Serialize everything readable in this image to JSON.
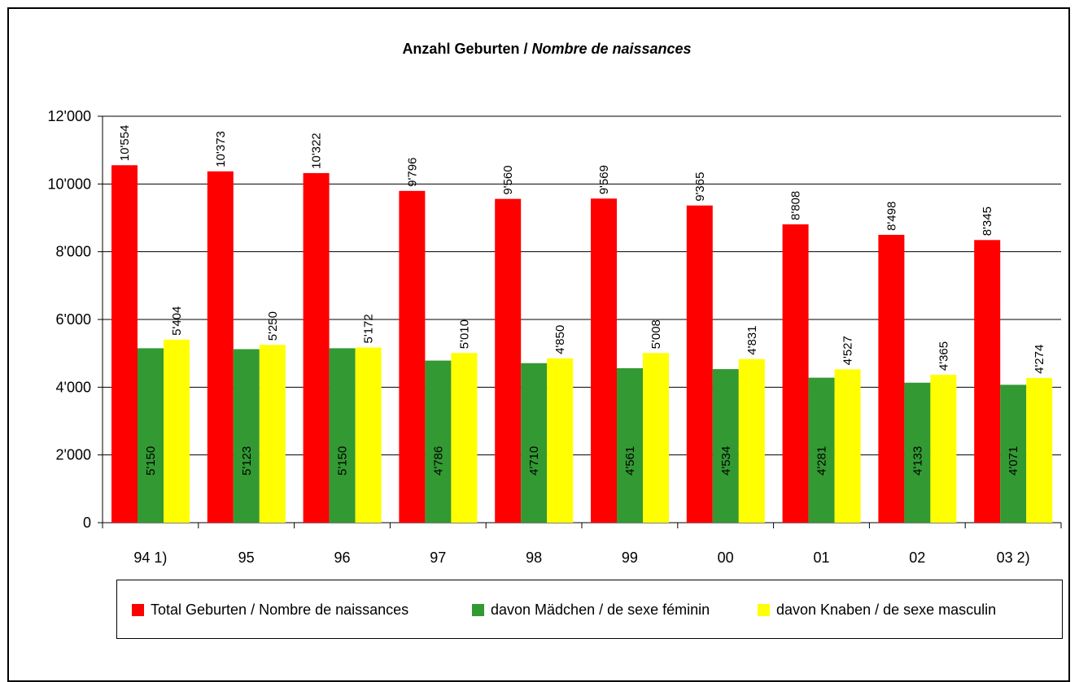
{
  "chart_data": {
    "type": "bar",
    "title_main": "Anzahl Geburten / ",
    "title_italic": "Nombre de naissances",
    "categories": [
      "94  1)",
      "95",
      "96",
      "97",
      "98",
      "99",
      "00",
      "01",
      "02",
      "03 2)"
    ],
    "series": [
      {
        "name": "Total Geburten / Nombre de naissances",
        "color": "#FF0000",
        "values": [
          10554,
          10373,
          10322,
          9796,
          9560,
          9569,
          9365,
          8808,
          8498,
          8345
        ],
        "labels": [
          "10'554",
          "10'373",
          "10'322",
          "9'796",
          "9'560",
          "9'569",
          "9'365",
          "8'808",
          "8'498",
          "8'345"
        ]
      },
      {
        "name": "davon Mädchen / de sexe féminin",
        "color": "#339933",
        "values": [
          5150,
          5123,
          5150,
          4786,
          4710,
          4561,
          4534,
          4281,
          4133,
          4071
        ],
        "labels": [
          "5'150",
          "5'123",
          "5'150",
          "4'786",
          "4'710",
          "4'561",
          "4'534",
          "4'281",
          "4'133",
          "4'071"
        ]
      },
      {
        "name": "davon Knaben / de sexe masculin",
        "color": "#FFFF00",
        "values": [
          5404,
          5250,
          5172,
          5010,
          4850,
          5008,
          4831,
          4527,
          4365,
          4274
        ],
        "labels": [
          "5'404",
          "5'250",
          "5'172",
          "5'010",
          "4'850",
          "5'008",
          "4'831",
          "4'527",
          "4'365",
          "4'274"
        ]
      }
    ],
    "ylim": [
      0,
      12000
    ],
    "yticks": [
      0,
      2000,
      4000,
      6000,
      8000,
      10000,
      12000
    ],
    "ytick_labels": [
      "0",
      "2'000",
      "4'000",
      "6'000",
      "8'000",
      "10'000",
      "12'000"
    ],
    "grid": true,
    "legend_position": "bottom"
  }
}
